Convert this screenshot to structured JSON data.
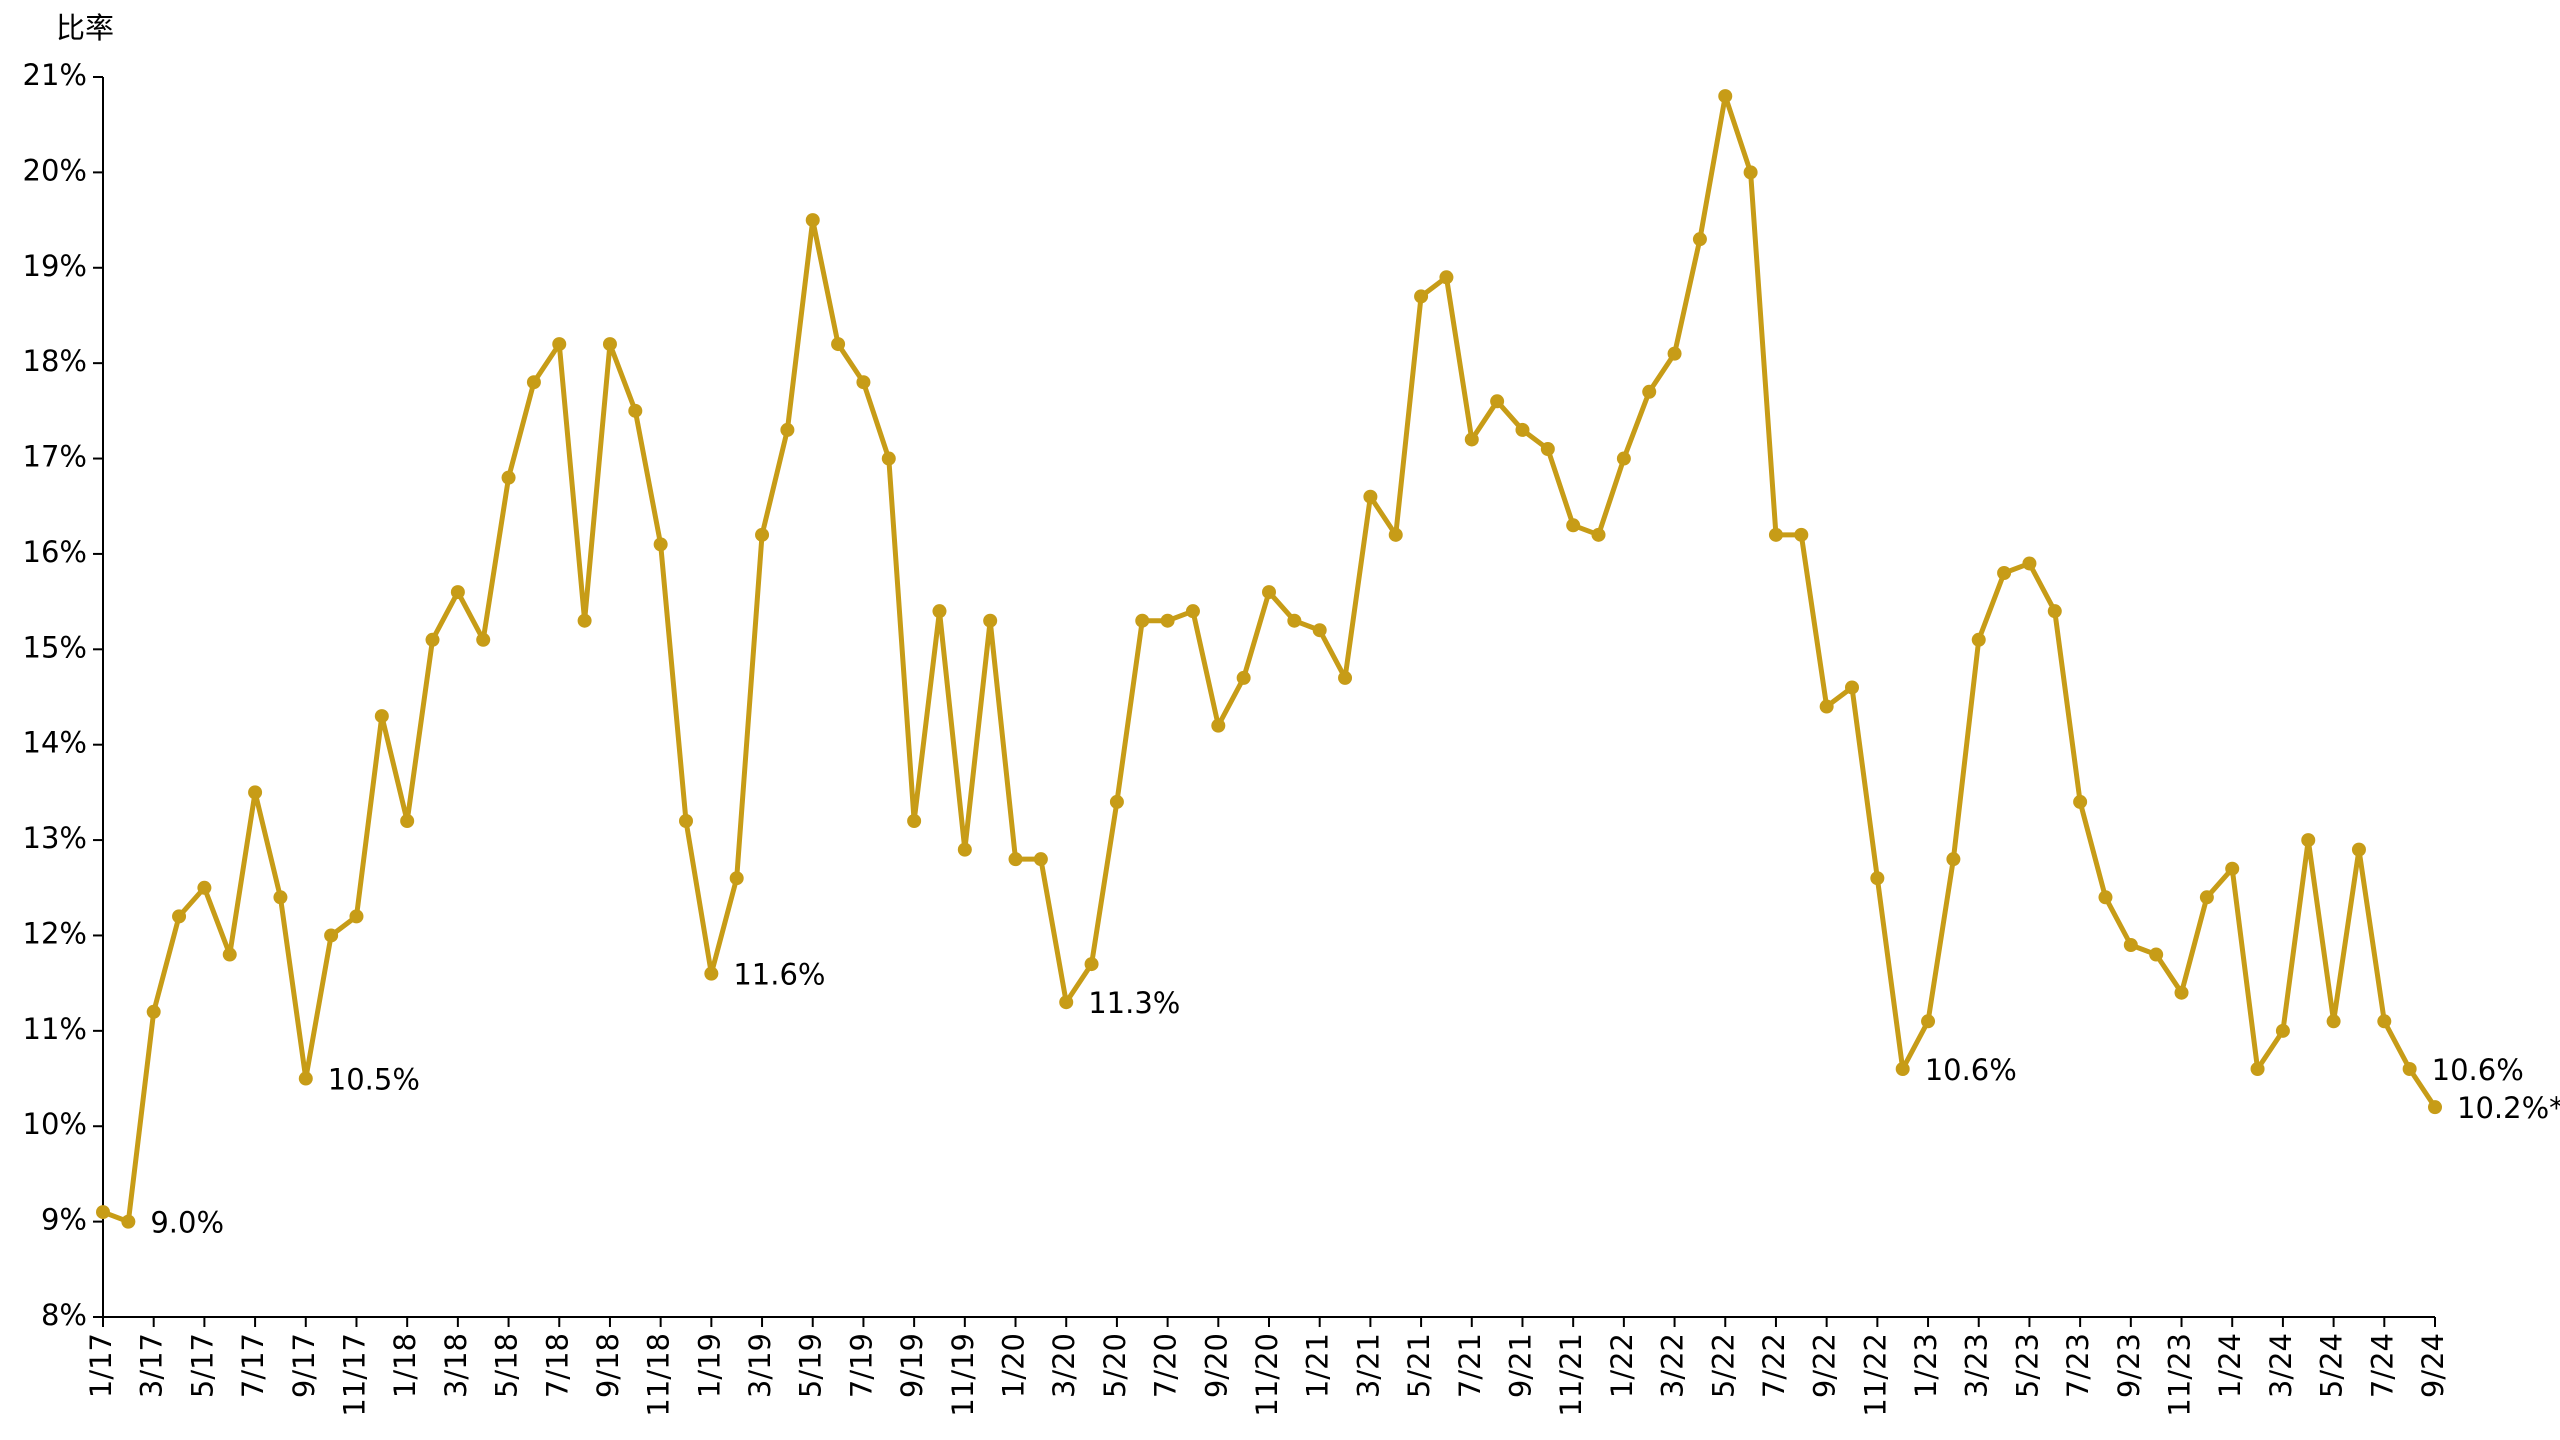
{
  "chart_data": {
    "type": "line",
    "ylabel": "比率",
    "categories": [
      "1/17",
      null,
      "3/17",
      null,
      "5/17",
      null,
      "7/17",
      null,
      "9/17",
      null,
      "11/17",
      null,
      "1/18",
      null,
      "3/18",
      null,
      "5/18",
      null,
      "7/18",
      null,
      "9/18",
      null,
      "11/18",
      null,
      "1/19",
      null,
      "3/19",
      null,
      "5/19",
      null,
      "7/19",
      null,
      "9/19",
      null,
      "11/19",
      null,
      "1/20",
      null,
      "3/20",
      null,
      "5/20",
      null,
      "7/20",
      null,
      "9/20",
      null,
      "11/20",
      null,
      "1/21",
      null,
      "3/21",
      null,
      "5/21",
      null,
      "7/21",
      null,
      "9/21",
      null,
      "11/21",
      null,
      "1/22",
      null,
      "3/22",
      null,
      "5/22",
      null,
      "7/22",
      null,
      "9/22",
      null,
      "11/22",
      null,
      "1/23",
      null,
      "3/23",
      null,
      "5/23",
      null,
      "7/23",
      null,
      "9/23",
      null,
      "11/23",
      null,
      "1/24",
      null,
      "3/24",
      null,
      "5/24",
      null,
      "7/24",
      null,
      "9/24"
    ],
    "values": [
      9.1,
      9.0,
      11.2,
      12.2,
      12.5,
      11.8,
      13.5,
      12.4,
      10.5,
      12.0,
      12.2,
      14.3,
      13.2,
      15.1,
      15.6,
      15.1,
      16.8,
      17.8,
      18.2,
      15.3,
      18.2,
      17.5,
      16.1,
      13.2,
      11.6,
      12.6,
      16.2,
      17.3,
      19.5,
      18.2,
      17.8,
      17.0,
      13.2,
      15.4,
      12.9,
      15.3,
      12.8,
      12.8,
      11.3,
      11.7,
      13.4,
      15.3,
      15.3,
      15.4,
      14.2,
      14.7,
      15.6,
      15.3,
      15.2,
      14.7,
      16.6,
      16.2,
      18.7,
      18.9,
      17.2,
      17.6,
      17.3,
      17.1,
      16.3,
      16.2,
      17.0,
      17.7,
      18.1,
      19.3,
      20.8,
      20.0,
      16.2,
      16.2,
      14.4,
      14.6,
      12.6,
      10.6,
      11.1,
      12.8,
      15.1,
      15.8,
      15.9,
      15.4,
      13.4,
      12.4,
      11.9,
      11.8,
      11.4,
      12.4,
      12.7,
      10.6,
      11.0,
      13.0,
      11.1,
      12.9,
      11.1,
      10.6,
      10.2
    ],
    "value_labels": [
      null,
      "9.0%",
      null,
      null,
      null,
      null,
      null,
      null,
      "10.5%",
      null,
      null,
      null,
      null,
      null,
      null,
      null,
      null,
      null,
      null,
      null,
      null,
      null,
      null,
      null,
      "11.6%",
      null,
      null,
      null,
      null,
      null,
      null,
      null,
      null,
      null,
      null,
      null,
      null,
      null,
      "11.3%",
      null,
      null,
      null,
      null,
      null,
      null,
      null,
      null,
      null,
      null,
      null,
      null,
      null,
      null,
      null,
      null,
      null,
      null,
      null,
      null,
      null,
      null,
      null,
      null,
      null,
      null,
      null,
      null,
      null,
      null,
      null,
      null,
      "10.6%",
      null,
      null,
      null,
      null,
      null,
      null,
      null,
      null,
      null,
      null,
      null,
      null,
      null,
      null,
      null,
      null,
      null,
      null,
      null,
      "10.6%",
      "10.2%*"
    ],
    "color": "#c79c17",
    "ylim": [
      8,
      21
    ],
    "yticks": [
      {
        "value": 8,
        "label": "8%"
      },
      {
        "value": 9,
        "label": "9%"
      },
      {
        "value": 10,
        "label": "10%"
      },
      {
        "value": 11,
        "label": "11%"
      },
      {
        "value": 12,
        "label": "12%"
      },
      {
        "value": 13,
        "label": "13%"
      },
      {
        "value": 14,
        "label": "14%"
      },
      {
        "value": 15,
        "label": "15%"
      },
      {
        "value": 16,
        "label": "16%"
      },
      {
        "value": 17,
        "label": "17%"
      },
      {
        "value": 18,
        "label": "18%"
      },
      {
        "value": 19,
        "label": "19%"
      },
      {
        "value": 20,
        "label": "20%"
      },
      {
        "value": 21,
        "label": "21%"
      }
    ],
    "grid": false
  }
}
